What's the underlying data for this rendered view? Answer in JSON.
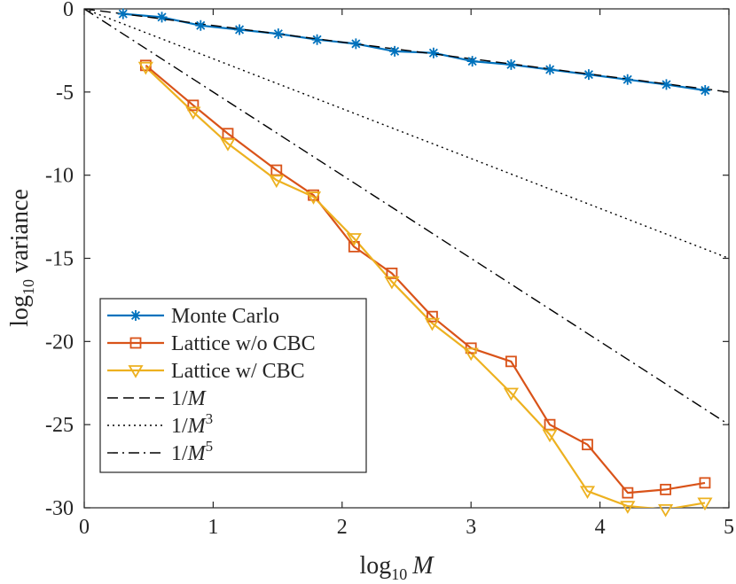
{
  "chart_data": {
    "type": "line",
    "title": "",
    "xlabel": {
      "base": "log",
      "sub": "10",
      "var": "M"
    },
    "ylabel": {
      "base": "log",
      "sub": "10",
      "rest": "variance"
    },
    "xlim": [
      0,
      5
    ],
    "ylim": [
      -30,
      0
    ],
    "grid": false,
    "legend_position": "bottom-left",
    "x_ticks": [
      {
        "value": 0,
        "label": "0"
      },
      {
        "value": 1,
        "label": "1"
      },
      {
        "value": 2,
        "label": "2"
      },
      {
        "value": 3,
        "label": "3"
      },
      {
        "value": 4,
        "label": "4"
      },
      {
        "value": 5,
        "label": "5"
      }
    ],
    "y_ticks": [
      {
        "value": 0,
        "label": "0"
      },
      {
        "value": -5,
        "label": "-5"
      },
      {
        "value": -10,
        "label": "-10"
      },
      {
        "value": -15,
        "label": "-15"
      },
      {
        "value": -20,
        "label": "-20"
      },
      {
        "value": -25,
        "label": "-25"
      },
      {
        "value": -30,
        "label": "-30"
      }
    ],
    "series": [
      {
        "name": "Monte Carlo",
        "color": "#0072BD",
        "marker": "asterisk",
        "x": [
          0.301,
          0.602,
          0.903,
          1.204,
          1.505,
          1.806,
          2.107,
          2.408,
          2.709,
          3.01,
          3.311,
          3.612,
          3.913,
          4.214,
          4.515,
          4.816
        ],
        "y": [
          -0.3,
          -0.5,
          -1.0,
          -1.25,
          -1.5,
          -1.85,
          -2.1,
          -2.55,
          -2.65,
          -3.15,
          -3.35,
          -3.65,
          -3.95,
          -4.25,
          -4.55,
          -4.9
        ]
      },
      {
        "name": "Lattice w/o CBC",
        "color": "#D95319",
        "marker": "square",
        "x": [
          0.477,
          0.845,
          1.114,
          1.491,
          1.778,
          2.093,
          2.386,
          2.699,
          3.0,
          3.311,
          3.611,
          3.903,
          4.215,
          4.509,
          4.814
        ],
        "y": [
          -3.4,
          -5.8,
          -7.5,
          -9.7,
          -11.2,
          -14.3,
          -15.9,
          -18.5,
          -20.4,
          -21.2,
          -25.0,
          -26.2,
          -29.1,
          -28.9,
          -28.5
        ]
      },
      {
        "name": "Lattice w/ CBC",
        "color": "#EDB120",
        "marker": "triangle-down",
        "x": [
          0.477,
          0.845,
          1.114,
          1.491,
          1.778,
          2.093,
          2.386,
          2.699,
          3.0,
          3.311,
          3.611,
          3.903,
          4.215,
          4.509,
          4.814
        ],
        "y": [
          -3.5,
          -6.2,
          -8.1,
          -10.3,
          -11.3,
          -13.8,
          -16.4,
          -18.9,
          -20.7,
          -23.1,
          -25.6,
          -29.0,
          -29.9,
          -30.1,
          -29.7
        ]
      },
      {
        "name": "1/M",
        "label_base": "1/",
        "label_var": "M",
        "label_exp": "",
        "color": "#000000",
        "dash": "dashed",
        "x": [
          0,
          5
        ],
        "y": [
          0,
          -5
        ]
      },
      {
        "name": "1/M^3",
        "label_base": "1/",
        "label_var": "M",
        "label_exp": "3",
        "color": "#000000",
        "dash": "dotted",
        "x": [
          0,
          5
        ],
        "y": [
          0,
          -15
        ]
      },
      {
        "name": "1/M^5",
        "label_base": "1/",
        "label_var": "M",
        "label_exp": "5",
        "color": "#000000",
        "dash": "dashdot",
        "x": [
          0,
          5
        ],
        "y": [
          0,
          -25
        ]
      }
    ]
  }
}
